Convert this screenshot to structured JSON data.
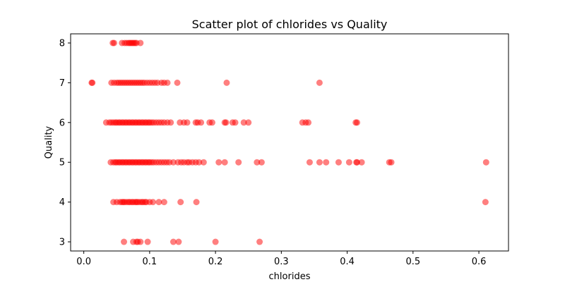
{
  "chart_data": {
    "type": "scatter",
    "title": "Scatter plot of chlorides vs Quality",
    "xlabel": "chlorides",
    "ylabel": "Quality",
    "xlim": [
      -0.02,
      0.645
    ],
    "ylim": [
      2.77,
      8.23
    ],
    "xticks": [
      0.0,
      0.1,
      0.2,
      0.3,
      0.4,
      0.5,
      0.6
    ],
    "xtick_labels": [
      "0.0",
      "0.1",
      "0.2",
      "0.3",
      "0.4",
      "0.5",
      "0.6"
    ],
    "yticks": [
      3,
      4,
      5,
      6,
      7,
      8
    ],
    "ytick_labels": [
      "3",
      "4",
      "5",
      "6",
      "7",
      "8"
    ],
    "grid": false,
    "marker_color": "#ff0000",
    "marker_alpha": 0.5,
    "series": [
      {
        "points": [
          [
            0.061,
            3
          ],
          [
            0.075,
            3
          ],
          [
            0.08,
            3
          ],
          [
            0.082,
            3
          ],
          [
            0.086,
            3
          ],
          [
            0.097,
            3
          ],
          [
            0.136,
            3
          ],
          [
            0.144,
            3
          ],
          [
            0.2,
            3
          ],
          [
            0.267,
            3
          ],
          [
            0.045,
            4
          ],
          [
            0.05,
            4
          ],
          [
            0.055,
            4
          ],
          [
            0.058,
            4
          ],
          [
            0.06,
            4
          ],
          [
            0.062,
            4
          ],
          [
            0.065,
            4
          ],
          [
            0.068,
            4
          ],
          [
            0.07,
            4
          ],
          [
            0.073,
            4
          ],
          [
            0.075,
            4
          ],
          [
            0.078,
            4
          ],
          [
            0.08,
            4
          ],
          [
            0.082,
            4
          ],
          [
            0.085,
            4
          ],
          [
            0.088,
            4
          ],
          [
            0.09,
            4
          ],
          [
            0.093,
            4
          ],
          [
            0.095,
            4
          ],
          [
            0.1,
            4
          ],
          [
            0.105,
            4
          ],
          [
            0.114,
            4
          ],
          [
            0.122,
            4
          ],
          [
            0.147,
            4
          ],
          [
            0.171,
            4
          ],
          [
            0.61,
            4
          ],
          [
            0.041,
            5
          ],
          [
            0.045,
            5
          ],
          [
            0.048,
            5
          ],
          [
            0.05,
            5
          ],
          [
            0.053,
            5
          ],
          [
            0.055,
            5
          ],
          [
            0.058,
            5
          ],
          [
            0.06,
            5
          ],
          [
            0.063,
            5
          ],
          [
            0.065,
            5
          ],
          [
            0.068,
            5
          ],
          [
            0.07,
            5
          ],
          [
            0.073,
            5
          ],
          [
            0.075,
            5
          ],
          [
            0.078,
            5
          ],
          [
            0.08,
            5
          ],
          [
            0.083,
            5
          ],
          [
            0.085,
            5
          ],
          [
            0.088,
            5
          ],
          [
            0.09,
            5
          ],
          [
            0.093,
            5
          ],
          [
            0.095,
            5
          ],
          [
            0.098,
            5
          ],
          [
            0.1,
            5
          ],
          [
            0.103,
            5
          ],
          [
            0.106,
            5
          ],
          [
            0.11,
            5
          ],
          [
            0.114,
            5
          ],
          [
            0.118,
            5
          ],
          [
            0.122,
            5
          ],
          [
            0.126,
            5
          ],
          [
            0.13,
            5
          ],
          [
            0.136,
            5
          ],
          [
            0.143,
            5
          ],
          [
            0.148,
            5
          ],
          [
            0.152,
            5
          ],
          [
            0.157,
            5
          ],
          [
            0.16,
            5
          ],
          [
            0.165,
            5
          ],
          [
            0.17,
            5
          ],
          [
            0.175,
            5
          ],
          [
            0.182,
            5
          ],
          [
            0.205,
            5
          ],
          [
            0.214,
            5
          ],
          [
            0.235,
            5
          ],
          [
            0.263,
            5
          ],
          [
            0.27,
            5
          ],
          [
            0.343,
            5
          ],
          [
            0.358,
            5
          ],
          [
            0.368,
            5
          ],
          [
            0.387,
            5
          ],
          [
            0.403,
            5
          ],
          [
            0.414,
            5
          ],
          [
            0.415,
            5
          ],
          [
            0.422,
            5
          ],
          [
            0.464,
            5
          ],
          [
            0.467,
            5
          ],
          [
            0.611,
            5
          ],
          [
            0.034,
            6
          ],
          [
            0.039,
            6
          ],
          [
            0.042,
            6
          ],
          [
            0.045,
            6
          ],
          [
            0.048,
            6
          ],
          [
            0.05,
            6
          ],
          [
            0.053,
            6
          ],
          [
            0.055,
            6
          ],
          [
            0.058,
            6
          ],
          [
            0.06,
            6
          ],
          [
            0.063,
            6
          ],
          [
            0.065,
            6
          ],
          [
            0.068,
            6
          ],
          [
            0.07,
            6
          ],
          [
            0.073,
            6
          ],
          [
            0.075,
            6
          ],
          [
            0.078,
            6
          ],
          [
            0.08,
            6
          ],
          [
            0.083,
            6
          ],
          [
            0.085,
            6
          ],
          [
            0.088,
            6
          ],
          [
            0.09,
            6
          ],
          [
            0.093,
            6
          ],
          [
            0.095,
            6
          ],
          [
            0.098,
            6
          ],
          [
            0.1,
            6
          ],
          [
            0.103,
            6
          ],
          [
            0.106,
            6
          ],
          [
            0.11,
            6
          ],
          [
            0.114,
            6
          ],
          [
            0.118,
            6
          ],
          [
            0.122,
            6
          ],
          [
            0.127,
            6
          ],
          [
            0.132,
            6
          ],
          [
            0.146,
            6
          ],
          [
            0.152,
            6
          ],
          [
            0.157,
            6
          ],
          [
            0.17,
            6
          ],
          [
            0.173,
            6
          ],
          [
            0.178,
            6
          ],
          [
            0.191,
            6
          ],
          [
            0.195,
            6
          ],
          [
            0.214,
            6
          ],
          [
            0.216,
            6
          ],
          [
            0.226,
            6
          ],
          [
            0.23,
            6
          ],
          [
            0.243,
            6
          ],
          [
            0.25,
            6
          ],
          [
            0.332,
            6
          ],
          [
            0.337,
            6
          ],
          [
            0.341,
            6
          ],
          [
            0.413,
            6
          ],
          [
            0.415,
            6
          ],
          [
            0.012,
            7
          ],
          [
            0.013,
            7
          ],
          [
            0.042,
            7
          ],
          [
            0.046,
            7
          ],
          [
            0.05,
            7
          ],
          [
            0.053,
            7
          ],
          [
            0.056,
            7
          ],
          [
            0.059,
            7
          ],
          [
            0.062,
            7
          ],
          [
            0.065,
            7
          ],
          [
            0.068,
            7
          ],
          [
            0.071,
            7
          ],
          [
            0.074,
            7
          ],
          [
            0.077,
            7
          ],
          [
            0.08,
            7
          ],
          [
            0.083,
            7
          ],
          [
            0.086,
            7
          ],
          [
            0.089,
            7
          ],
          [
            0.092,
            7
          ],
          [
            0.096,
            7
          ],
          [
            0.1,
            7
          ],
          [
            0.104,
            7
          ],
          [
            0.108,
            7
          ],
          [
            0.112,
            7
          ],
          [
            0.118,
            7
          ],
          [
            0.122,
            7
          ],
          [
            0.127,
            7
          ],
          [
            0.142,
            7
          ],
          [
            0.217,
            7
          ],
          [
            0.358,
            7
          ],
          [
            0.044,
            8
          ],
          [
            0.046,
            8
          ],
          [
            0.058,
            8
          ],
          [
            0.062,
            8
          ],
          [
            0.065,
            8
          ],
          [
            0.068,
            8
          ],
          [
            0.07,
            8
          ],
          [
            0.072,
            8
          ],
          [
            0.074,
            8
          ],
          [
            0.076,
            8
          ],
          [
            0.078,
            8
          ],
          [
            0.08,
            8
          ],
          [
            0.086,
            8
          ]
        ]
      }
    ]
  }
}
